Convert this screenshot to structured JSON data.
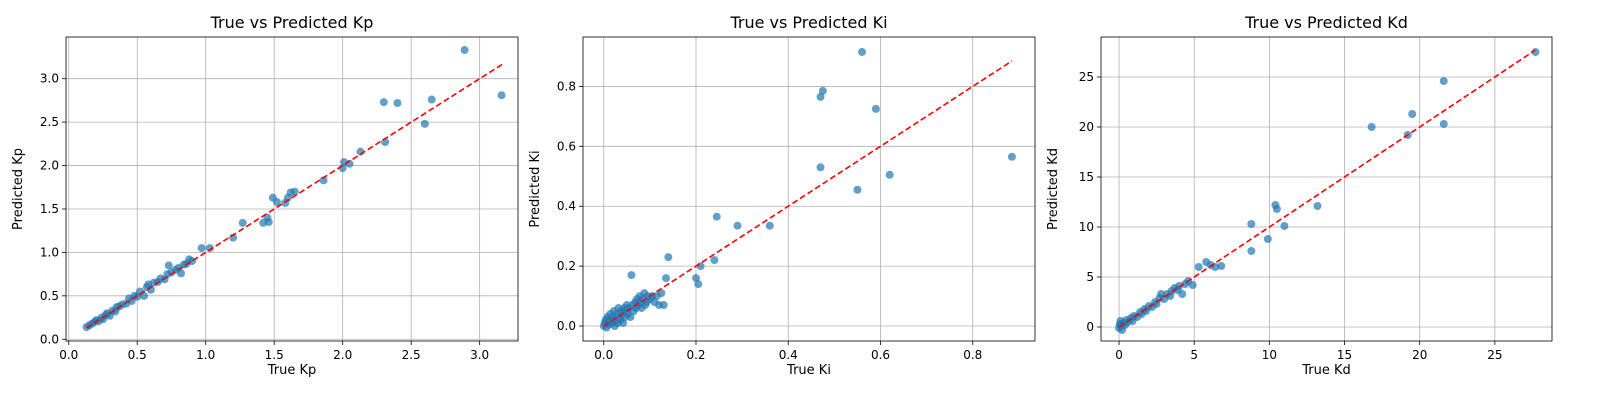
{
  "chart_data": [
    {
      "type": "scatter",
      "title": "True vs Predicted Kp",
      "xlabel": "True Kp",
      "ylabel": "Predicted Kp",
      "xlim": [
        -0.02,
        3.28
      ],
      "ylim": [
        -0.02,
        3.48
      ],
      "xticks": [
        0.0,
        0.5,
        1.0,
        1.5,
        2.0,
        2.5,
        3.0
      ],
      "xtick_labels": [
        "0.0",
        "0.5",
        "1.0",
        "1.5",
        "2.0",
        "2.5",
        "3.0"
      ],
      "yticks": [
        0.0,
        0.5,
        1.0,
        1.5,
        2.0,
        2.5,
        3.0
      ],
      "ytick_labels": [
        "0.0",
        "0.5",
        "1.0",
        "1.5",
        "2.0",
        "2.5",
        "3.0"
      ],
      "grid": true,
      "marker_color": "#1f77b4",
      "reference_line": {
        "x": [
          0.13,
          3.17
        ],
        "y": [
          0.13,
          3.17
        ],
        "color": "#ff0000",
        "style": "dashed"
      },
      "points": [
        [
          0.13,
          0.14
        ],
        [
          0.15,
          0.16
        ],
        [
          0.17,
          0.18
        ],
        [
          0.19,
          0.2
        ],
        [
          0.2,
          0.22
        ],
        [
          0.22,
          0.21
        ],
        [
          0.24,
          0.25
        ],
        [
          0.25,
          0.23
        ],
        [
          0.27,
          0.28
        ],
        [
          0.28,
          0.3
        ],
        [
          0.3,
          0.27
        ],
        [
          0.32,
          0.33
        ],
        [
          0.34,
          0.32
        ],
        [
          0.35,
          0.37
        ],
        [
          0.37,
          0.38
        ],
        [
          0.39,
          0.4
        ],
        [
          0.42,
          0.41
        ],
        [
          0.44,
          0.47
        ],
        [
          0.46,
          0.44
        ],
        [
          0.48,
          0.5
        ],
        [
          0.5,
          0.49
        ],
        [
          0.52,
          0.55
        ],
        [
          0.55,
          0.5
        ],
        [
          0.57,
          0.6
        ],
        [
          0.58,
          0.63
        ],
        [
          0.6,
          0.57
        ],
        [
          0.62,
          0.65
        ],
        [
          0.65,
          0.66
        ],
        [
          0.67,
          0.7
        ],
        [
          0.7,
          0.69
        ],
        [
          0.72,
          0.75
        ],
        [
          0.73,
          0.85
        ],
        [
          0.75,
          0.77
        ],
        [
          0.78,
          0.8
        ],
        [
          0.8,
          0.82
        ],
        [
          0.82,
          0.76
        ],
        [
          0.84,
          0.86
        ],
        [
          0.86,
          0.87
        ],
        [
          0.88,
          0.92
        ],
        [
          0.9,
          0.9
        ],
        [
          0.97,
          1.05
        ],
        [
          1.03,
          1.05
        ],
        [
          1.2,
          1.17
        ],
        [
          1.27,
          1.34
        ],
        [
          1.42,
          1.34
        ],
        [
          1.45,
          1.4
        ],
        [
          1.46,
          1.35
        ],
        [
          1.49,
          1.63
        ],
        [
          1.52,
          1.58
        ],
        [
          1.58,
          1.57
        ],
        [
          1.6,
          1.63
        ],
        [
          1.62,
          1.69
        ],
        [
          1.65,
          1.7
        ],
        [
          1.86,
          1.83
        ],
        [
          2.0,
          1.97
        ],
        [
          2.01,
          2.04
        ],
        [
          2.05,
          2.02
        ],
        [
          2.13,
          2.16
        ],
        [
          2.3,
          2.73
        ],
        [
          2.31,
          2.27
        ],
        [
          2.4,
          2.72
        ],
        [
          2.6,
          2.48
        ],
        [
          2.65,
          2.76
        ],
        [
          2.89,
          3.33
        ],
        [
          3.16,
          2.81
        ]
      ]
    },
    {
      "type": "scatter",
      "title": "True vs Predicted Ki",
      "xlabel": "True Ki",
      "ylabel": "Predicted Ki",
      "xlim": [
        -0.045,
        0.935
      ],
      "ylim": [
        -0.05,
        0.965
      ],
      "xticks": [
        0.0,
        0.2,
        0.4,
        0.6,
        0.8
      ],
      "xtick_labels": [
        "0.0",
        "0.2",
        "0.4",
        "0.6",
        "0.8"
      ],
      "yticks": [
        0.0,
        0.2,
        0.4,
        0.6,
        0.8
      ],
      "ytick_labels": [
        "0.0",
        "0.2",
        "0.4",
        "0.6",
        "0.8"
      ],
      "grid": true,
      "marker_color": "#1f77b4",
      "reference_line": {
        "x": [
          0.0,
          0.885
        ],
        "y": [
          0.0,
          0.885
        ],
        "color": "#ff0000",
        "style": "dashed"
      },
      "points": [
        [
          0.0,
          0.0
        ],
        [
          0.002,
          0.01
        ],
        [
          0.004,
          0.02
        ],
        [
          0.006,
          -0.005
        ],
        [
          0.008,
          0.03
        ],
        [
          0.01,
          0.015
        ],
        [
          0.012,
          0.005
        ],
        [
          0.014,
          0.04
        ],
        [
          0.016,
          0.02
        ],
        [
          0.018,
          0.01
        ],
        [
          0.02,
          0.03
        ],
        [
          0.022,
          0.05
        ],
        [
          0.024,
          0.0
        ],
        [
          0.026,
          0.02
        ],
        [
          0.028,
          0.04
        ],
        [
          0.03,
          0.01
        ],
        [
          0.032,
          0.06
        ],
        [
          0.034,
          0.03
        ],
        [
          0.036,
          0.02
        ],
        [
          0.038,
          0.05
        ],
        [
          0.04,
          0.04
        ],
        [
          0.042,
          0.01
        ],
        [
          0.044,
          0.06
        ],
        [
          0.046,
          0.03
        ],
        [
          0.048,
          0.05
        ],
        [
          0.05,
          0.07
        ],
        [
          0.052,
          0.04
        ],
        [
          0.055,
          0.06
        ],
        [
          0.058,
          0.03
        ],
        [
          0.06,
          0.17
        ],
        [
          0.062,
          0.07
        ],
        [
          0.065,
          0.05
        ],
        [
          0.068,
          0.08
        ],
        [
          0.07,
          0.06
        ],
        [
          0.072,
          0.09
        ],
        [
          0.075,
          0.07
        ],
        [
          0.078,
          0.1
        ],
        [
          0.08,
          0.08
        ],
        [
          0.082,
          0.06
        ],
        [
          0.085,
          0.09
        ],
        [
          0.088,
          0.11
        ],
        [
          0.09,
          0.07
        ],
        [
          0.093,
          0.08
        ],
        [
          0.095,
          0.1
        ],
        [
          0.1,
          0.09
        ],
        [
          0.105,
          0.1
        ],
        [
          0.11,
          0.08
        ],
        [
          0.115,
          0.1
        ],
        [
          0.12,
          0.07
        ],
        [
          0.125,
          0.11
        ],
        [
          0.13,
          0.07
        ],
        [
          0.135,
          0.16
        ],
        [
          0.14,
          0.23
        ],
        [
          0.2,
          0.16
        ],
        [
          0.205,
          0.14
        ],
        [
          0.21,
          0.2
        ],
        [
          0.24,
          0.22
        ],
        [
          0.245,
          0.365
        ],
        [
          0.29,
          0.335
        ],
        [
          0.36,
          0.335
        ],
        [
          0.47,
          0.765
        ],
        [
          0.475,
          0.785
        ],
        [
          0.47,
          0.53
        ],
        [
          0.55,
          0.455
        ],
        [
          0.56,
          0.915
        ],
        [
          0.59,
          0.725
        ],
        [
          0.62,
          0.505
        ],
        [
          0.885,
          0.565
        ]
      ]
    },
    {
      "type": "scatter",
      "title": "True vs Predicted Kd",
      "xlabel": "True Kd",
      "ylabel": "Predicted Kd",
      "xlim": [
        -1.2,
        28.8
      ],
      "ylim": [
        -1.4,
        29.0
      ],
      "xticks": [
        0,
        5,
        10,
        15,
        20,
        25
      ],
      "xtick_labels": [
        "0",
        "5",
        "10",
        "15",
        "20",
        "25"
      ],
      "yticks": [
        0,
        5,
        10,
        15,
        20,
        25
      ],
      "ytick_labels": [
        "0",
        "5",
        "10",
        "15",
        "20",
        "25"
      ],
      "grid": true,
      "marker_color": "#1f77b4",
      "reference_line": {
        "x": [
          0.0,
          27.7
        ],
        "y": [
          0.0,
          27.7
        ],
        "color": "#ff0000",
        "style": "dashed"
      },
      "points": [
        [
          0.0,
          -0.1
        ],
        [
          0.05,
          0.3
        ],
        [
          0.1,
          0.6
        ],
        [
          0.12,
          0.1
        ],
        [
          0.2,
          -0.3
        ],
        [
          0.3,
          0.4
        ],
        [
          0.4,
          0.2
        ],
        [
          0.5,
          0.7
        ],
        [
          0.6,
          0.5
        ],
        [
          0.8,
          0.9
        ],
        [
          0.9,
          0.6
        ],
        [
          1.0,
          1.1
        ],
        [
          1.2,
          1.0
        ],
        [
          1.4,
          1.5
        ],
        [
          1.5,
          1.3
        ],
        [
          1.7,
          1.8
        ],
        [
          1.8,
          1.6
        ],
        [
          2.0,
          2.1
        ],
        [
          2.2,
          2.0
        ],
        [
          2.4,
          2.5
        ],
        [
          2.5,
          2.3
        ],
        [
          2.7,
          2.9
        ],
        [
          2.8,
          3.3
        ],
        [
          3.0,
          2.8
        ],
        [
          3.2,
          3.3
        ],
        [
          3.4,
          3.1
        ],
        [
          3.5,
          3.6
        ],
        [
          3.7,
          3.9
        ],
        [
          3.9,
          3.7
        ],
        [
          4.0,
          4.1
        ],
        [
          4.2,
          3.3
        ],
        [
          4.4,
          4.3
        ],
        [
          4.6,
          4.6
        ],
        [
          4.9,
          4.2
        ],
        [
          5.3,
          6.0
        ],
        [
          5.8,
          6.5
        ],
        [
          6.1,
          6.2
        ],
        [
          6.4,
          6.0
        ],
        [
          6.8,
          6.1
        ],
        [
          8.8,
          7.6
        ],
        [
          8.8,
          10.3
        ],
        [
          9.9,
          8.8
        ],
        [
          10.4,
          12.2
        ],
        [
          10.5,
          11.8
        ],
        [
          11.0,
          10.1
        ],
        [
          13.2,
          12.1
        ],
        [
          16.8,
          20.0
        ],
        [
          19.2,
          19.2
        ],
        [
          19.5,
          21.3
        ],
        [
          21.6,
          24.6
        ],
        [
          21.6,
          20.3
        ],
        [
          27.7,
          27.5
        ]
      ]
    }
  ]
}
